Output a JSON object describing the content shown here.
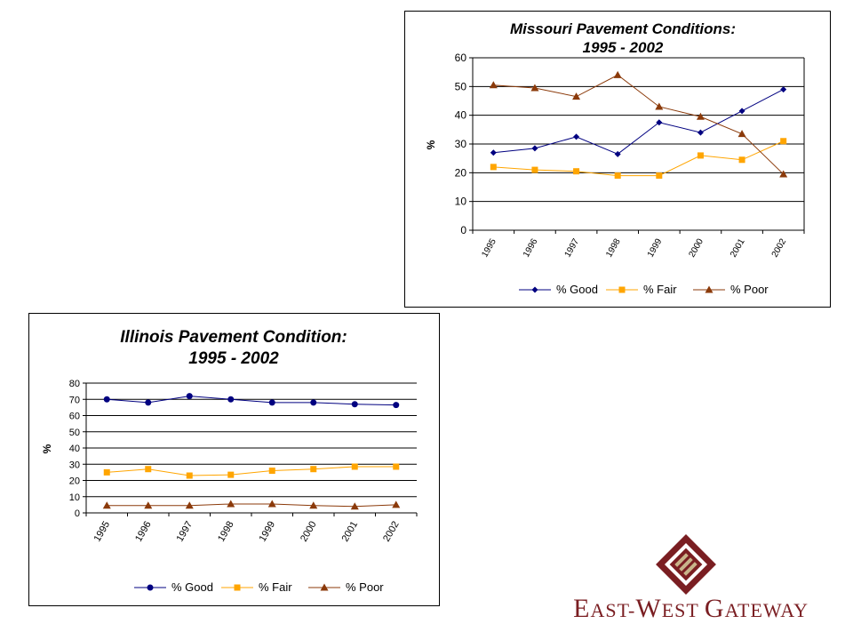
{
  "chart_data": [
    {
      "id": "missouri",
      "type": "line",
      "title": "Missouri Pavement Conditions:",
      "subtitle": "1995 - 2002",
      "xlabel": "",
      "ylabel": "%",
      "categories": [
        "1995",
        "1996",
        "1997",
        "1998",
        "1999",
        "2000",
        "2001",
        "2002"
      ],
      "yticks": [
        "0",
        "10",
        "20",
        "30",
        "40",
        "50",
        "60"
      ],
      "ylim": [
        0,
        60
      ],
      "grid": true,
      "legend_position": "bottom",
      "series": [
        {
          "name": "% Good",
          "color": "#000080",
          "marker": "diamond",
          "values": [
            27,
            28.5,
            32.5,
            26.5,
            37.5,
            34,
            41.5,
            49
          ]
        },
        {
          "name": "% Fair",
          "color": "#FFA500",
          "marker": "square",
          "values": [
            22,
            21,
            20.5,
            19,
            19,
            26,
            24.5,
            31
          ]
        },
        {
          "name": "% Poor",
          "color": "#8B3A0A",
          "marker": "triangle",
          "values": [
            50.5,
            49.5,
            46.5,
            54,
            43,
            39.5,
            33.5,
            19.5
          ]
        }
      ]
    },
    {
      "id": "illinois",
      "type": "line",
      "title": "Illinois Pavement Condition:",
      "subtitle": "1995 - 2002",
      "xlabel": "",
      "ylabel": "%",
      "categories": [
        "1995",
        "1996",
        "1997",
        "1998",
        "1999",
        "2000",
        "2001",
        "2002"
      ],
      "yticks": [
        "0",
        "10",
        "20",
        "30",
        "40",
        "50",
        "60",
        "70",
        "80"
      ],
      "ylim": [
        0,
        80
      ],
      "grid": true,
      "legend_position": "bottom",
      "series": [
        {
          "name": "% Good",
          "color": "#000080",
          "marker": "circle",
          "values": [
            70,
            68,
            72,
            70,
            68,
            68,
            67,
            66.5
          ]
        },
        {
          "name": "% Fair",
          "color": "#FFA500",
          "marker": "square",
          "values": [
            25,
            27,
            23,
            23.5,
            26,
            27,
            28.5,
            28.5
          ]
        },
        {
          "name": "% Poor",
          "color": "#8B3A0A",
          "marker": "triangle",
          "values": [
            4.5,
            4.5,
            4.5,
            5.5,
            5.5,
            4.5,
            4,
            5
          ]
        }
      ]
    }
  ],
  "logo": {
    "icon": "east-west-gateway-diamond-icon",
    "text_e": "E",
    "text_ast": "AST-",
    "text_w": "W",
    "text_est": "EST ",
    "text_g": "G",
    "text_ateway": "ATEWAY",
    "color": "#7a1e22",
    "accent": "#c8b48a"
  }
}
